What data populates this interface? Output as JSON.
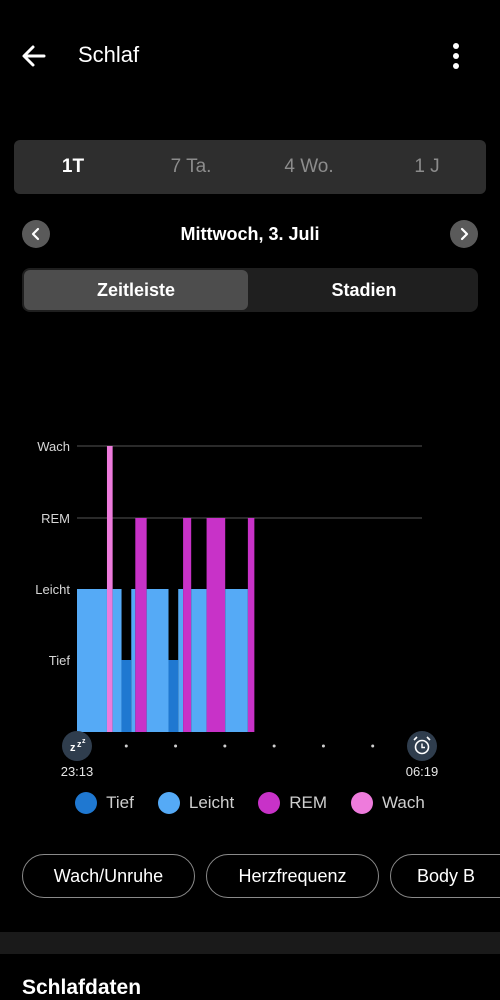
{
  "header": {
    "title": "Schlaf"
  },
  "period_tabs": [
    {
      "label": "1T",
      "active": true
    },
    {
      "label": "7 Ta.",
      "active": false
    },
    {
      "label": "4 Wo.",
      "active": false
    },
    {
      "label": "1 J",
      "active": false
    }
  ],
  "date_nav": {
    "date": "Mittwoch, 3. Juli"
  },
  "view_toggle": {
    "timeline": "Zeitleiste",
    "stages": "Stadien"
  },
  "colors": {
    "tief": "#1f78d1",
    "leicht": "#55aaf6",
    "rem": "#c832c8",
    "wach": "#ee7bdc"
  },
  "chart_data": {
    "type": "bar",
    "title": "",
    "y_categories": [
      "Tief",
      "Leicht",
      "REM",
      "Wach"
    ],
    "start_time": "23:13",
    "end_time": "06:19",
    "segments": [
      {
        "stage": "Leicht",
        "start": "23:13",
        "end": "23:50"
      },
      {
        "stage": "Wach",
        "start": "23:50",
        "end": "23:57"
      },
      {
        "stage": "Leicht",
        "start": "23:57",
        "end": "00:08"
      },
      {
        "stage": "Tief",
        "start": "00:08",
        "end": "00:20"
      },
      {
        "stage": "Leicht",
        "start": "00:20",
        "end": "00:25"
      },
      {
        "stage": "REM",
        "start": "00:25",
        "end": "00:39"
      },
      {
        "stage": "Leicht",
        "start": "00:39",
        "end": "01:06"
      },
      {
        "stage": "Tief",
        "start": "01:06",
        "end": "01:18"
      },
      {
        "stage": "Leicht",
        "start": "01:18",
        "end": "01:24"
      },
      {
        "stage": "REM",
        "start": "01:24",
        "end": "01:34"
      },
      {
        "stage": "Leicht",
        "start": "01:34",
        "end": "01:53"
      },
      {
        "stage": "REM",
        "start": "01:53",
        "end": "02:16"
      },
      {
        "stage": "Leicht",
        "start": "02:16",
        "end": "02:44"
      },
      {
        "stage": "REM",
        "start": "02:44",
        "end": "02:52"
      }
    ],
    "legend": [
      "Tief",
      "Leicht",
      "REM",
      "Wach"
    ]
  },
  "chips": [
    "Wach/Unruhe",
    "Herzfrequenz",
    "Body B"
  ],
  "section": {
    "title": "Schlafdaten"
  }
}
